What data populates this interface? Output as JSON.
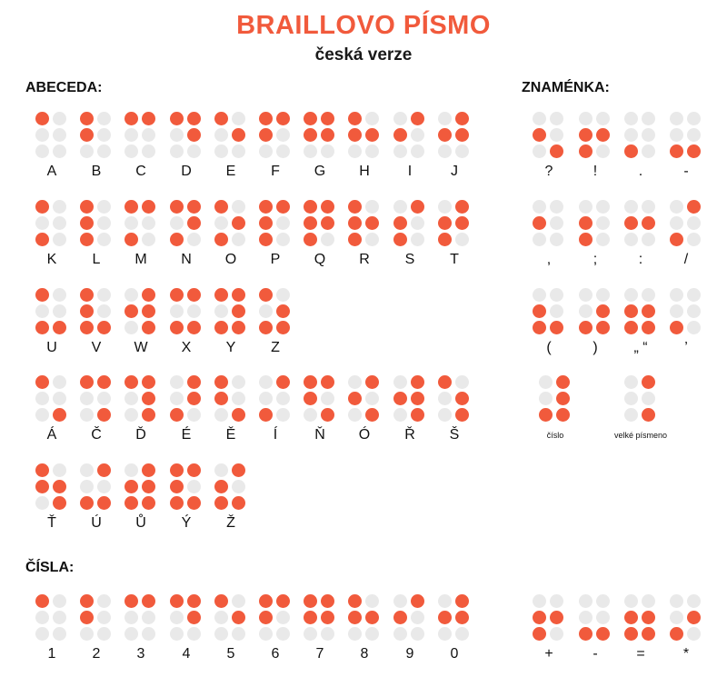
{
  "header": {
    "title": "BRAILLOVO PÍSMO",
    "subtitle": "česká verze"
  },
  "colors": {
    "accent": "#f15a3c",
    "inactive": "#e9e9e9"
  },
  "sections": {
    "alphabet_label": "ABECEDA:",
    "signs_label": "ZNAMÉNKA:",
    "numbers_label": "ČÍSLA:"
  },
  "alphabet_rows": [
    [
      {
        "label": "A",
        "dots": [
          1
        ]
      },
      {
        "label": "B",
        "dots": [
          1,
          2
        ]
      },
      {
        "label": "C",
        "dots": [
          1,
          4
        ]
      },
      {
        "label": "D",
        "dots": [
          1,
          4,
          5
        ]
      },
      {
        "label": "E",
        "dots": [
          1,
          5
        ]
      },
      {
        "label": "F",
        "dots": [
          1,
          2,
          4
        ]
      },
      {
        "label": "G",
        "dots": [
          1,
          2,
          4,
          5
        ]
      },
      {
        "label": "H",
        "dots": [
          1,
          2,
          5
        ]
      },
      {
        "label": "I",
        "dots": [
          2,
          4
        ]
      },
      {
        "label": "J",
        "dots": [
          2,
          4,
          5
        ]
      }
    ],
    [
      {
        "label": "K",
        "dots": [
          1,
          3
        ]
      },
      {
        "label": "L",
        "dots": [
          1,
          2,
          3
        ]
      },
      {
        "label": "M",
        "dots": [
          1,
          3,
          4
        ]
      },
      {
        "label": "N",
        "dots": [
          1,
          3,
          4,
          5
        ]
      },
      {
        "label": "O",
        "dots": [
          1,
          3,
          5
        ]
      },
      {
        "label": "P",
        "dots": [
          1,
          2,
          3,
          4
        ]
      },
      {
        "label": "Q",
        "dots": [
          1,
          2,
          3,
          4,
          5
        ]
      },
      {
        "label": "R",
        "dots": [
          1,
          2,
          3,
          5
        ]
      },
      {
        "label": "S",
        "dots": [
          2,
          3,
          4
        ]
      },
      {
        "label": "T",
        "dots": [
          2,
          3,
          4,
          5
        ]
      }
    ],
    [
      {
        "label": "U",
        "dots": [
          1,
          3,
          6
        ]
      },
      {
        "label": "V",
        "dots": [
          1,
          2,
          3,
          6
        ]
      },
      {
        "label": "W",
        "dots": [
          2,
          4,
          5,
          6
        ]
      },
      {
        "label": "X",
        "dots": [
          1,
          3,
          4,
          6
        ]
      },
      {
        "label": "Y",
        "dots": [
          1,
          3,
          4,
          5,
          6
        ]
      },
      {
        "label": "Z",
        "dots": [
          1,
          3,
          5,
          6
        ]
      }
    ],
    [
      {
        "label": "Á",
        "dots": [
          1,
          6
        ]
      },
      {
        "label": "Č",
        "dots": [
          1,
          4,
          6
        ]
      },
      {
        "label": "Ď",
        "dots": [
          1,
          4,
          5,
          6
        ]
      },
      {
        "label": "É",
        "dots": [
          3,
          4,
          5
        ]
      },
      {
        "label": "Ě",
        "dots": [
          1,
          2,
          6
        ]
      },
      {
        "label": "Í",
        "dots": [
          3,
          4
        ]
      },
      {
        "label": "Ň",
        "dots": [
          1,
          2,
          4,
          6
        ]
      },
      {
        "label": "Ó",
        "dots": [
          2,
          4,
          6
        ]
      },
      {
        "label": "Ř",
        "dots": [
          2,
          4,
          5,
          6
        ]
      },
      {
        "label": "Š",
        "dots": [
          1,
          5,
          6
        ]
      }
    ],
    [
      {
        "label": "Ť",
        "dots": [
          1,
          2,
          5,
          6
        ]
      },
      {
        "label": "Ú",
        "dots": [
          3,
          4,
          6
        ]
      },
      {
        "label": "Ů",
        "dots": [
          2,
          3,
          4,
          5,
          6
        ]
      },
      {
        "label": "Ý",
        "dots": [
          1,
          2,
          3,
          4,
          6
        ]
      },
      {
        "label": "Ž",
        "dots": [
          2,
          3,
          4,
          6
        ]
      }
    ]
  ],
  "numbers": [
    {
      "label": "1",
      "dots": [
        1
      ]
    },
    {
      "label": "2",
      "dots": [
        1,
        2
      ]
    },
    {
      "label": "3",
      "dots": [
        1,
        4
      ]
    },
    {
      "label": "4",
      "dots": [
        1,
        4,
        5
      ]
    },
    {
      "label": "5",
      "dots": [
        1,
        5
      ]
    },
    {
      "label": "6",
      "dots": [
        1,
        2,
        4
      ]
    },
    {
      "label": "7",
      "dots": [
        1,
        2,
        4,
        5
      ]
    },
    {
      "label": "8",
      "dots": [
        1,
        2,
        5
      ]
    },
    {
      "label": "9",
      "dots": [
        2,
        4
      ]
    },
    {
      "label": "0",
      "dots": [
        2,
        4,
        5
      ]
    }
  ],
  "signs_rows": [
    [
      {
        "label": "?",
        "dots": [
          2,
          6
        ]
      },
      {
        "label": "!",
        "dots": [
          2,
          3,
          5
        ]
      },
      {
        "label": ".",
        "dots": [
          3
        ]
      },
      {
        "label": "-",
        "dots": [
          3,
          6
        ]
      }
    ],
    [
      {
        "label": ",",
        "dots": [
          2
        ]
      },
      {
        "label": ";",
        "dots": [
          2,
          3
        ]
      },
      {
        "label": ":",
        "dots": [
          2,
          5
        ]
      },
      {
        "label": "/",
        "dots": [
          3,
          4
        ]
      }
    ],
    [
      {
        "label": "(",
        "dots": [
          2,
          3,
          6
        ]
      },
      {
        "label": ")",
        "dots": [
          3,
          5,
          6
        ]
      },
      {
        "label": "„ “",
        "dots": [
          2,
          3,
          5,
          6
        ]
      },
      {
        "label": "’",
        "dots": [
          3
        ]
      }
    ],
    [
      {
        "label": "číslo",
        "dots": [
          3,
          4,
          5,
          6
        ],
        "small": true
      },
      {
        "label": "velké písmeno",
        "dots": [
          4,
          6
        ],
        "small": true
      }
    ]
  ],
  "math_signs": [
    {
      "label": "+",
      "dots": [
        2,
        3,
        5
      ]
    },
    {
      "label": "-",
      "dots": [
        3,
        6
      ]
    },
    {
      "label": "=",
      "dots": [
        2,
        3,
        5,
        6
      ]
    },
    {
      "label": "*",
      "dots": [
        3,
        5
      ]
    }
  ]
}
